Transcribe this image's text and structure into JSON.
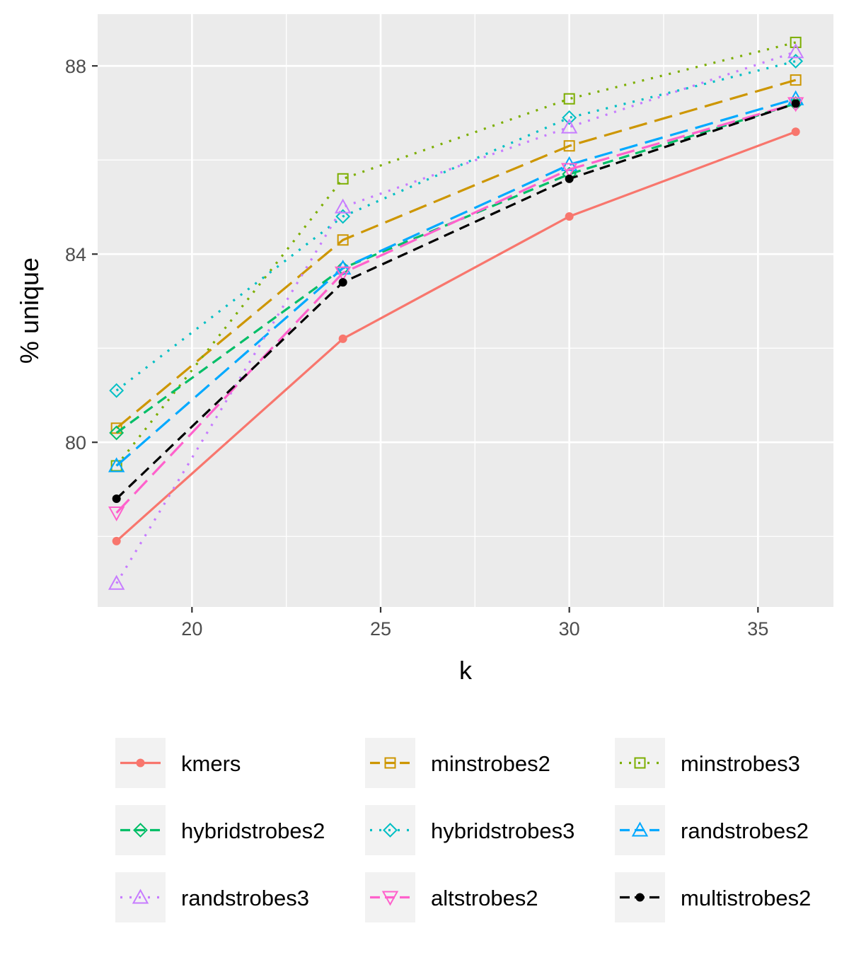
{
  "chart_data": {
    "type": "line",
    "xlabel": "k",
    "ylabel": "% unique",
    "x": [
      18,
      24,
      30,
      36
    ],
    "xlim": [
      17.5,
      37
    ],
    "ylim": [
      76.5,
      89.1
    ],
    "xticks": [
      20,
      25,
      30,
      35
    ],
    "xtick_labels": [
      "20",
      "25",
      "30",
      "35"
    ],
    "yticks": [
      80,
      84,
      88
    ],
    "ytick_labels": [
      "80",
      "84",
      "88"
    ],
    "grid": true,
    "legend_position": "bottom",
    "series": [
      {
        "name": "kmers",
        "color": "#F8766D",
        "dash": "solid",
        "marker": "filled-circle",
        "values": [
          77.9,
          82.2,
          84.8,
          86.6
        ]
      },
      {
        "name": "minstrobes2",
        "color": "#CD9600",
        "dash": "longdash",
        "marker": "open-square",
        "values": [
          80.3,
          84.3,
          86.3,
          87.7
        ]
      },
      {
        "name": "minstrobes3",
        "color": "#7CAE00",
        "dash": "dotted",
        "marker": "open-square",
        "values": [
          79.5,
          85.6,
          87.3,
          88.5
        ]
      },
      {
        "name": "hybridstrobes2",
        "color": "#00BE67",
        "dash": "dashed",
        "marker": "open-diamond",
        "values": [
          80.2,
          83.7,
          85.7,
          87.2
        ]
      },
      {
        "name": "hybridstrobes3",
        "color": "#00BFC4",
        "dash": "dotted",
        "marker": "open-diamond",
        "values": [
          81.1,
          84.8,
          86.9,
          88.1
        ]
      },
      {
        "name": "randstrobes2",
        "color": "#00A9FF",
        "dash": "longdash",
        "marker": "open-triangle-up",
        "values": [
          79.5,
          83.7,
          85.9,
          87.3
        ]
      },
      {
        "name": "randstrobes3",
        "color": "#C77CFF",
        "dash": "dotted",
        "marker": "open-triangle-up",
        "values": [
          77.0,
          85.0,
          86.7,
          88.3
        ]
      },
      {
        "name": "altstrobes2",
        "color": "#FF61CC",
        "dash": "longdash",
        "marker": "open-triangle-down",
        "values": [
          78.5,
          83.6,
          85.8,
          87.2
        ]
      },
      {
        "name": "multistrobes2",
        "color": "#000000",
        "dash": "dashed",
        "marker": "filled-circle",
        "values": [
          78.8,
          83.4,
          85.6,
          87.2
        ]
      }
    ]
  }
}
